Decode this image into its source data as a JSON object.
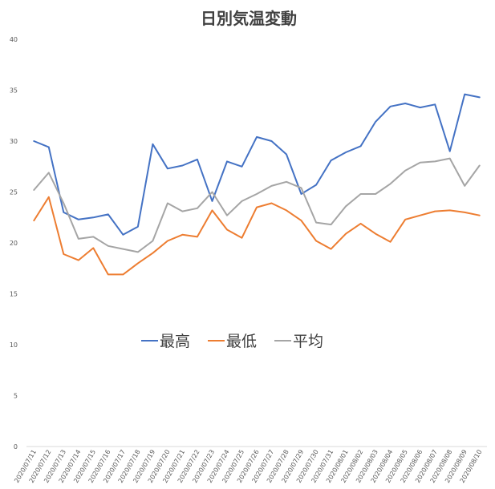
{
  "chart_data": {
    "type": "line",
    "title": "日別気温変動",
    "xlabel": "",
    "ylabel": "",
    "ylim": [
      0,
      40
    ],
    "yticks": [
      0,
      5,
      10,
      15,
      20,
      25,
      30,
      35,
      40
    ],
    "grid": false,
    "legend_position": "inside-center",
    "categories": [
      "2020/07/11",
      "2020/07/12",
      "2020/07/13",
      "2020/07/14",
      "2020/07/15",
      "2020/07/16",
      "2020/07/17",
      "2020/07/18",
      "2020/07/19",
      "2020/07/20",
      "2020/07/21",
      "2020/07/22",
      "2020/07/23",
      "2020/07/24",
      "2020/07/25",
      "2020/07/26",
      "2020/07/27",
      "2020/07/28",
      "2020/07/29",
      "2020/07/30",
      "2020/07/31",
      "2020/08/01",
      "2020/08/02",
      "2020/08/03",
      "2020/08/04",
      "2020/08/05",
      "2020/08/06",
      "2020/08/07",
      "2020/08/08",
      "2020/08/09",
      "2020/08/10"
    ],
    "series": [
      {
        "name": "最高",
        "color": "#4472C4",
        "values": [
          30.0,
          29.4,
          23.0,
          22.3,
          22.5,
          22.8,
          20.8,
          21.6,
          29.7,
          27.3,
          27.6,
          28.2,
          24.1,
          28.0,
          27.5,
          30.4,
          30.0,
          28.7,
          24.8,
          25.7,
          28.1,
          28.9,
          29.5,
          31.9,
          33.4,
          33.7,
          33.3,
          33.6,
          29.0,
          34.6,
          34.3
        ]
      },
      {
        "name": "最低",
        "color": "#ED7D31",
        "values": [
          22.2,
          24.5,
          18.9,
          18.3,
          19.5,
          16.9,
          16.9,
          18.0,
          19.0,
          20.2,
          20.8,
          20.6,
          23.2,
          21.3,
          20.5,
          23.5,
          23.9,
          23.2,
          22.2,
          20.2,
          19.4,
          20.9,
          21.9,
          20.9,
          20.1,
          22.3,
          22.7,
          23.1,
          23.2,
          23.0,
          22.7
        ]
      },
      {
        "name": "平均",
        "color": "#A5A5A5",
        "values": [
          25.2,
          26.9,
          23.9,
          20.4,
          20.6,
          19.7,
          19.4,
          19.1,
          20.2,
          23.9,
          23.1,
          23.4,
          25.0,
          22.7,
          24.1,
          24.8,
          25.6,
          26.0,
          25.4,
          22.0,
          21.8,
          23.6,
          24.8,
          24.8,
          25.8,
          27.1,
          27.9,
          28.0,
          28.3,
          25.6,
          27.6
        ]
      }
    ]
  }
}
